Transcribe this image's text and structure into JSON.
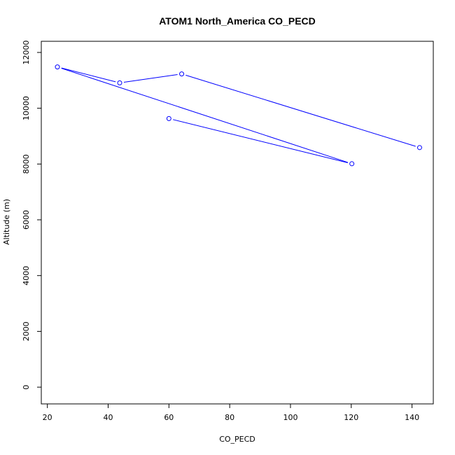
{
  "chart_data": {
    "type": "line",
    "title": "ATOM1 North_America CO_PECD",
    "xlabel": "CO_PECD",
    "ylabel": "Altitude (m)",
    "xlim": [
      18,
      147
    ],
    "ylim": [
      -600,
      12400
    ],
    "xticks": [
      20,
      40,
      60,
      80,
      100,
      120,
      140
    ],
    "yticks": [
      0,
      2000,
      4000,
      6000,
      8000,
      10000,
      12000
    ],
    "line_color": "#0000ff",
    "markers": "open-circle",
    "series": [
      {
        "x": [
          60.0,
          120.2,
          23.3,
          43.8,
          64.2,
          142.5
        ],
        "y": [
          9630,
          8010,
          11480,
          10910,
          11230,
          8590
        ]
      }
    ]
  }
}
